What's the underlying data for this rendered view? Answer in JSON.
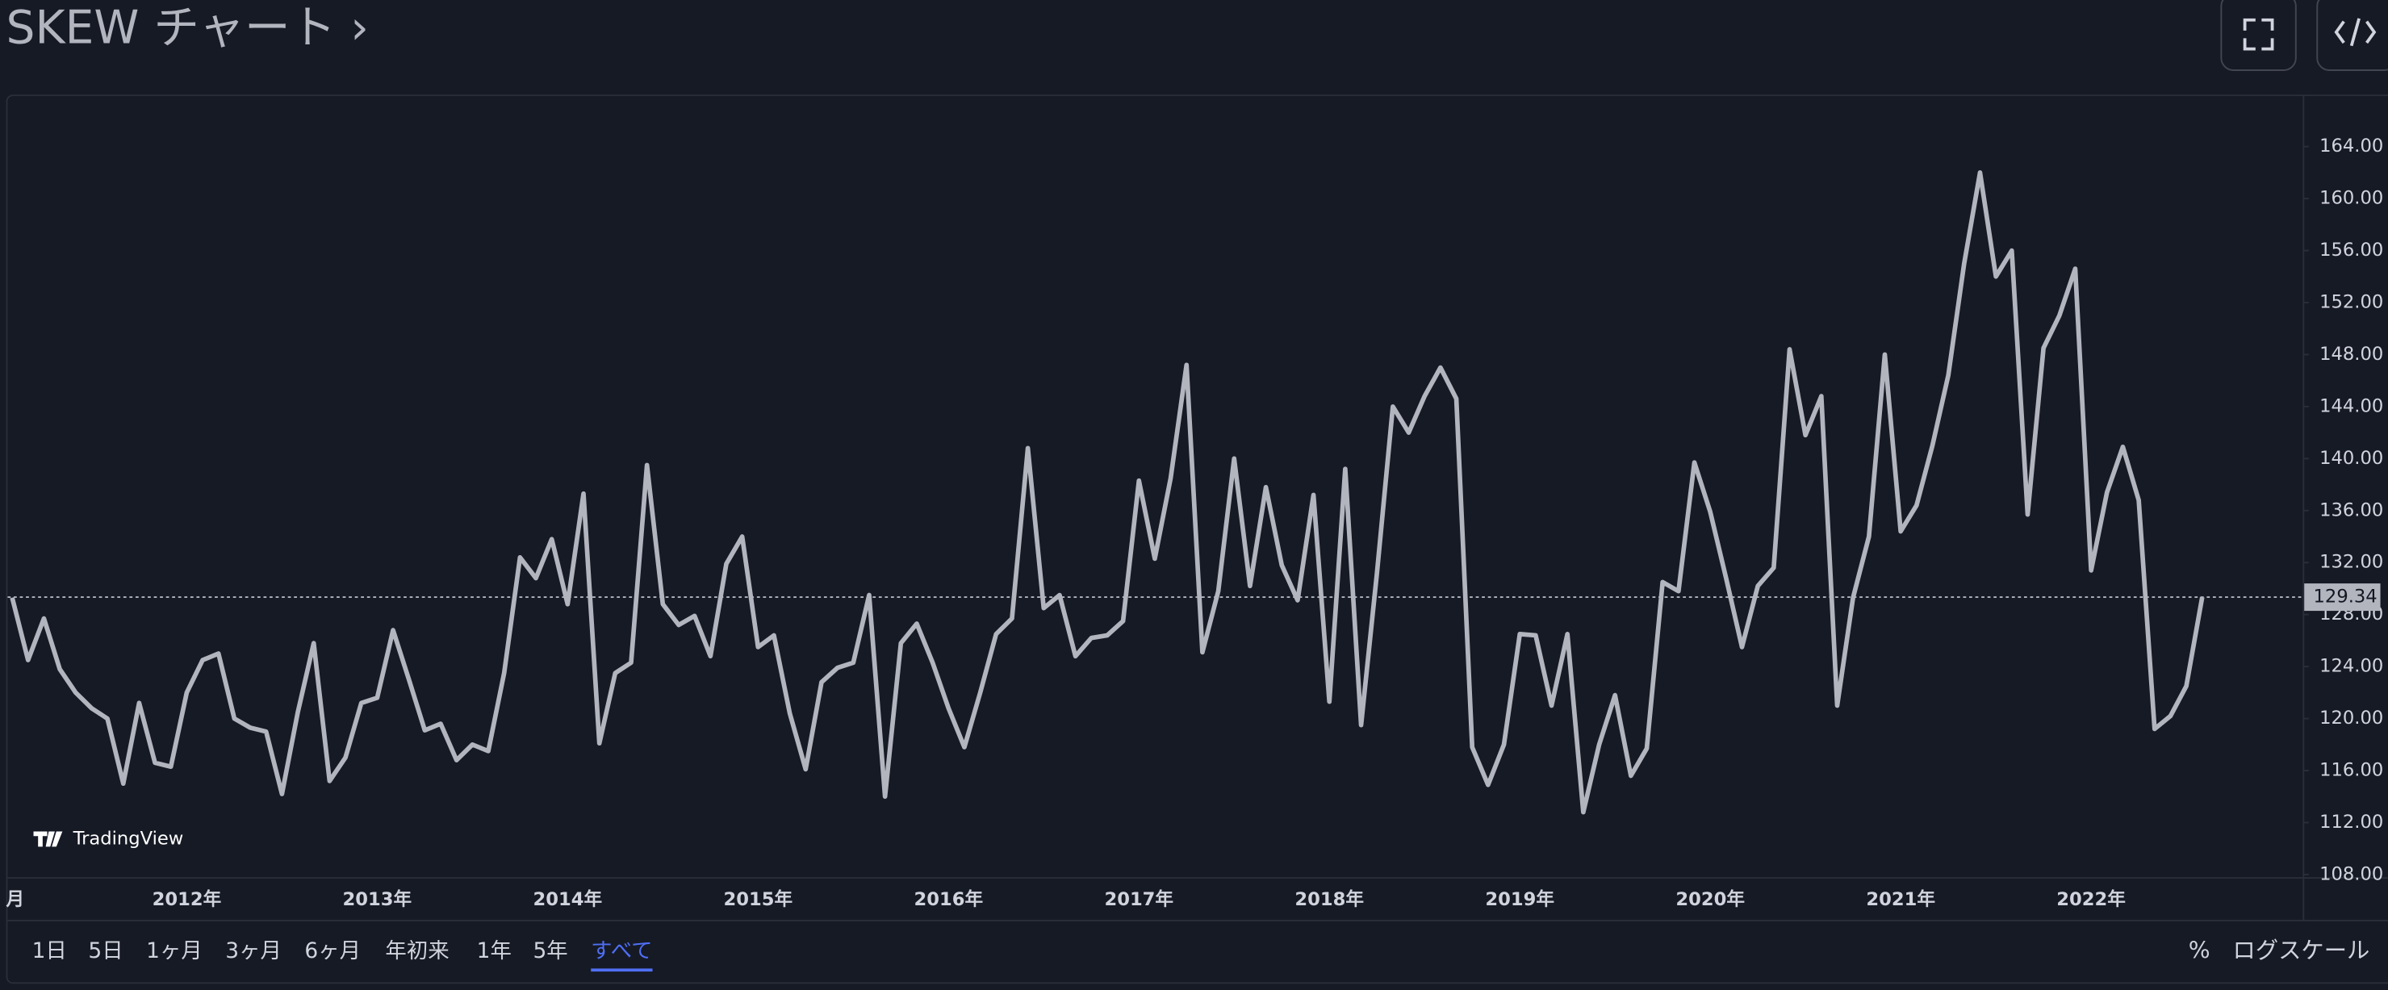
{
  "header": {
    "title": "SKEW チャート ›"
  },
  "watermark": "TradingView",
  "toolbar": {
    "ranges": [
      "1日",
      "5日",
      "1ヶ月",
      "3ヶ月",
      "6ヶ月",
      "年初来",
      "1年",
      "5年",
      "すべて"
    ],
    "scale_options": [
      "%",
      "ログスケール"
    ]
  },
  "chart_data": {
    "type": "line",
    "color": "#b2b5be",
    "last_price": 129.34,
    "categories": [
      "月",
      null,
      null,
      null,
      null,
      null,
      null,
      null,
      null,
      null,
      null,
      "2012年",
      null,
      null,
      null,
      null,
      null,
      null,
      null,
      null,
      null,
      null,
      null,
      "2013年",
      null,
      null,
      null,
      null,
      null,
      null,
      null,
      null,
      null,
      null,
      null,
      "2014年",
      null,
      null,
      null,
      null,
      null,
      null,
      null,
      null,
      null,
      null,
      null,
      "2015年",
      null,
      null,
      null,
      null,
      null,
      null,
      null,
      null,
      null,
      null,
      null,
      "2016年",
      null,
      null,
      null,
      null,
      null,
      null,
      null,
      null,
      null,
      null,
      null,
      "2017年",
      null,
      null,
      null,
      null,
      null,
      null,
      null,
      null,
      null,
      null,
      null,
      "2018年",
      null,
      null,
      null,
      null,
      null,
      null,
      null,
      null,
      null,
      null,
      null,
      "2019年",
      null,
      null,
      null,
      null,
      null,
      null,
      null,
      null,
      null,
      null,
      null,
      "2020年",
      null,
      null,
      null,
      null,
      null,
      null,
      null,
      null,
      null,
      null,
      null,
      "2021年",
      null,
      null,
      null,
      null,
      null,
      null,
      null,
      null,
      null,
      null,
      null,
      "2022年",
      null,
      null,
      null,
      null,
      null,
      null,
      null
    ],
    "values": [
      129.3,
      124.5,
      127.7,
      123.8,
      122,
      120.8,
      120,
      115,
      121.2,
      116.6,
      116.3,
      122,
      124.5,
      125,
      120,
      119.3,
      119,
      114.2,
      120.5,
      125.8,
      115.2,
      117,
      121.2,
      121.6,
      126.8,
      123,
      119.1,
      119.6,
      116.8,
      118,
      117.5,
      123.5,
      132.4,
      130.8,
      133.8,
      128.8,
      137.3,
      118.1,
      123.5,
      124.3,
      139.5,
      128.8,
      127.2,
      127.9,
      124.8,
      131.9,
      134,
      125.5,
      126.4,
      120.4,
      116.1,
      122.8,
      123.9,
      124.3,
      129.5,
      114,
      125.8,
      127.3,
      124.3,
      120.8,
      117.8,
      122,
      126.5,
      127.7,
      140.8,
      128.5,
      129.5,
      124.8,
      126.2,
      126.4,
      127.5,
      138.3,
      132.3,
      138.5,
      147.2,
      125.1,
      129.8,
      140,
      130.2,
      137.8,
      131.8,
      129.1,
      137.2,
      121.3,
      139.2,
      119.5,
      131.2,
      144,
      142,
      144.8,
      147,
      144.6,
      117.8,
      114.9,
      118,
      126.5,
      126.4,
      121,
      126.5,
      112.8,
      118,
      121.8,
      115.6,
      117.7,
      130.5,
      129.8,
      139.7,
      135.9,
      130.8,
      125.5,
      130.2,
      131.6,
      148.4,
      141.8,
      144.8,
      121,
      129.3,
      134,
      148,
      134.4,
      136.4,
      141,
      146.4,
      155,
      162,
      154,
      156,
      135.7,
      148.5,
      151,
      154.6,
      131.4,
      137.4,
      140.9,
      136.8,
      119.2,
      120.2,
      122.5,
      129.34
    ],
    "ylim": [
      107.8,
      168
    ],
    "yticks": [
      {
        "value": 108,
        "label": "108.00"
      },
      {
        "value": 112,
        "label": "112.00"
      },
      {
        "value": 116,
        "label": "116.00"
      },
      {
        "value": 120,
        "label": "120.00"
      },
      {
        "value": 124,
        "label": "124.00"
      },
      {
        "value": 128,
        "label": "128.00"
      },
      {
        "value": 132,
        "label": "132.00"
      },
      {
        "value": 136,
        "label": "136.00"
      },
      {
        "value": 140,
        "label": "140.00"
      },
      {
        "value": 144,
        "label": "144.00"
      },
      {
        "value": 148,
        "label": "148.00"
      },
      {
        "value": 152,
        "label": "152.00"
      },
      {
        "value": 156,
        "label": "156.00"
      },
      {
        "value": 160,
        "label": "160.00"
      },
      {
        "value": 164,
        "label": "164.00"
      }
    ]
  }
}
